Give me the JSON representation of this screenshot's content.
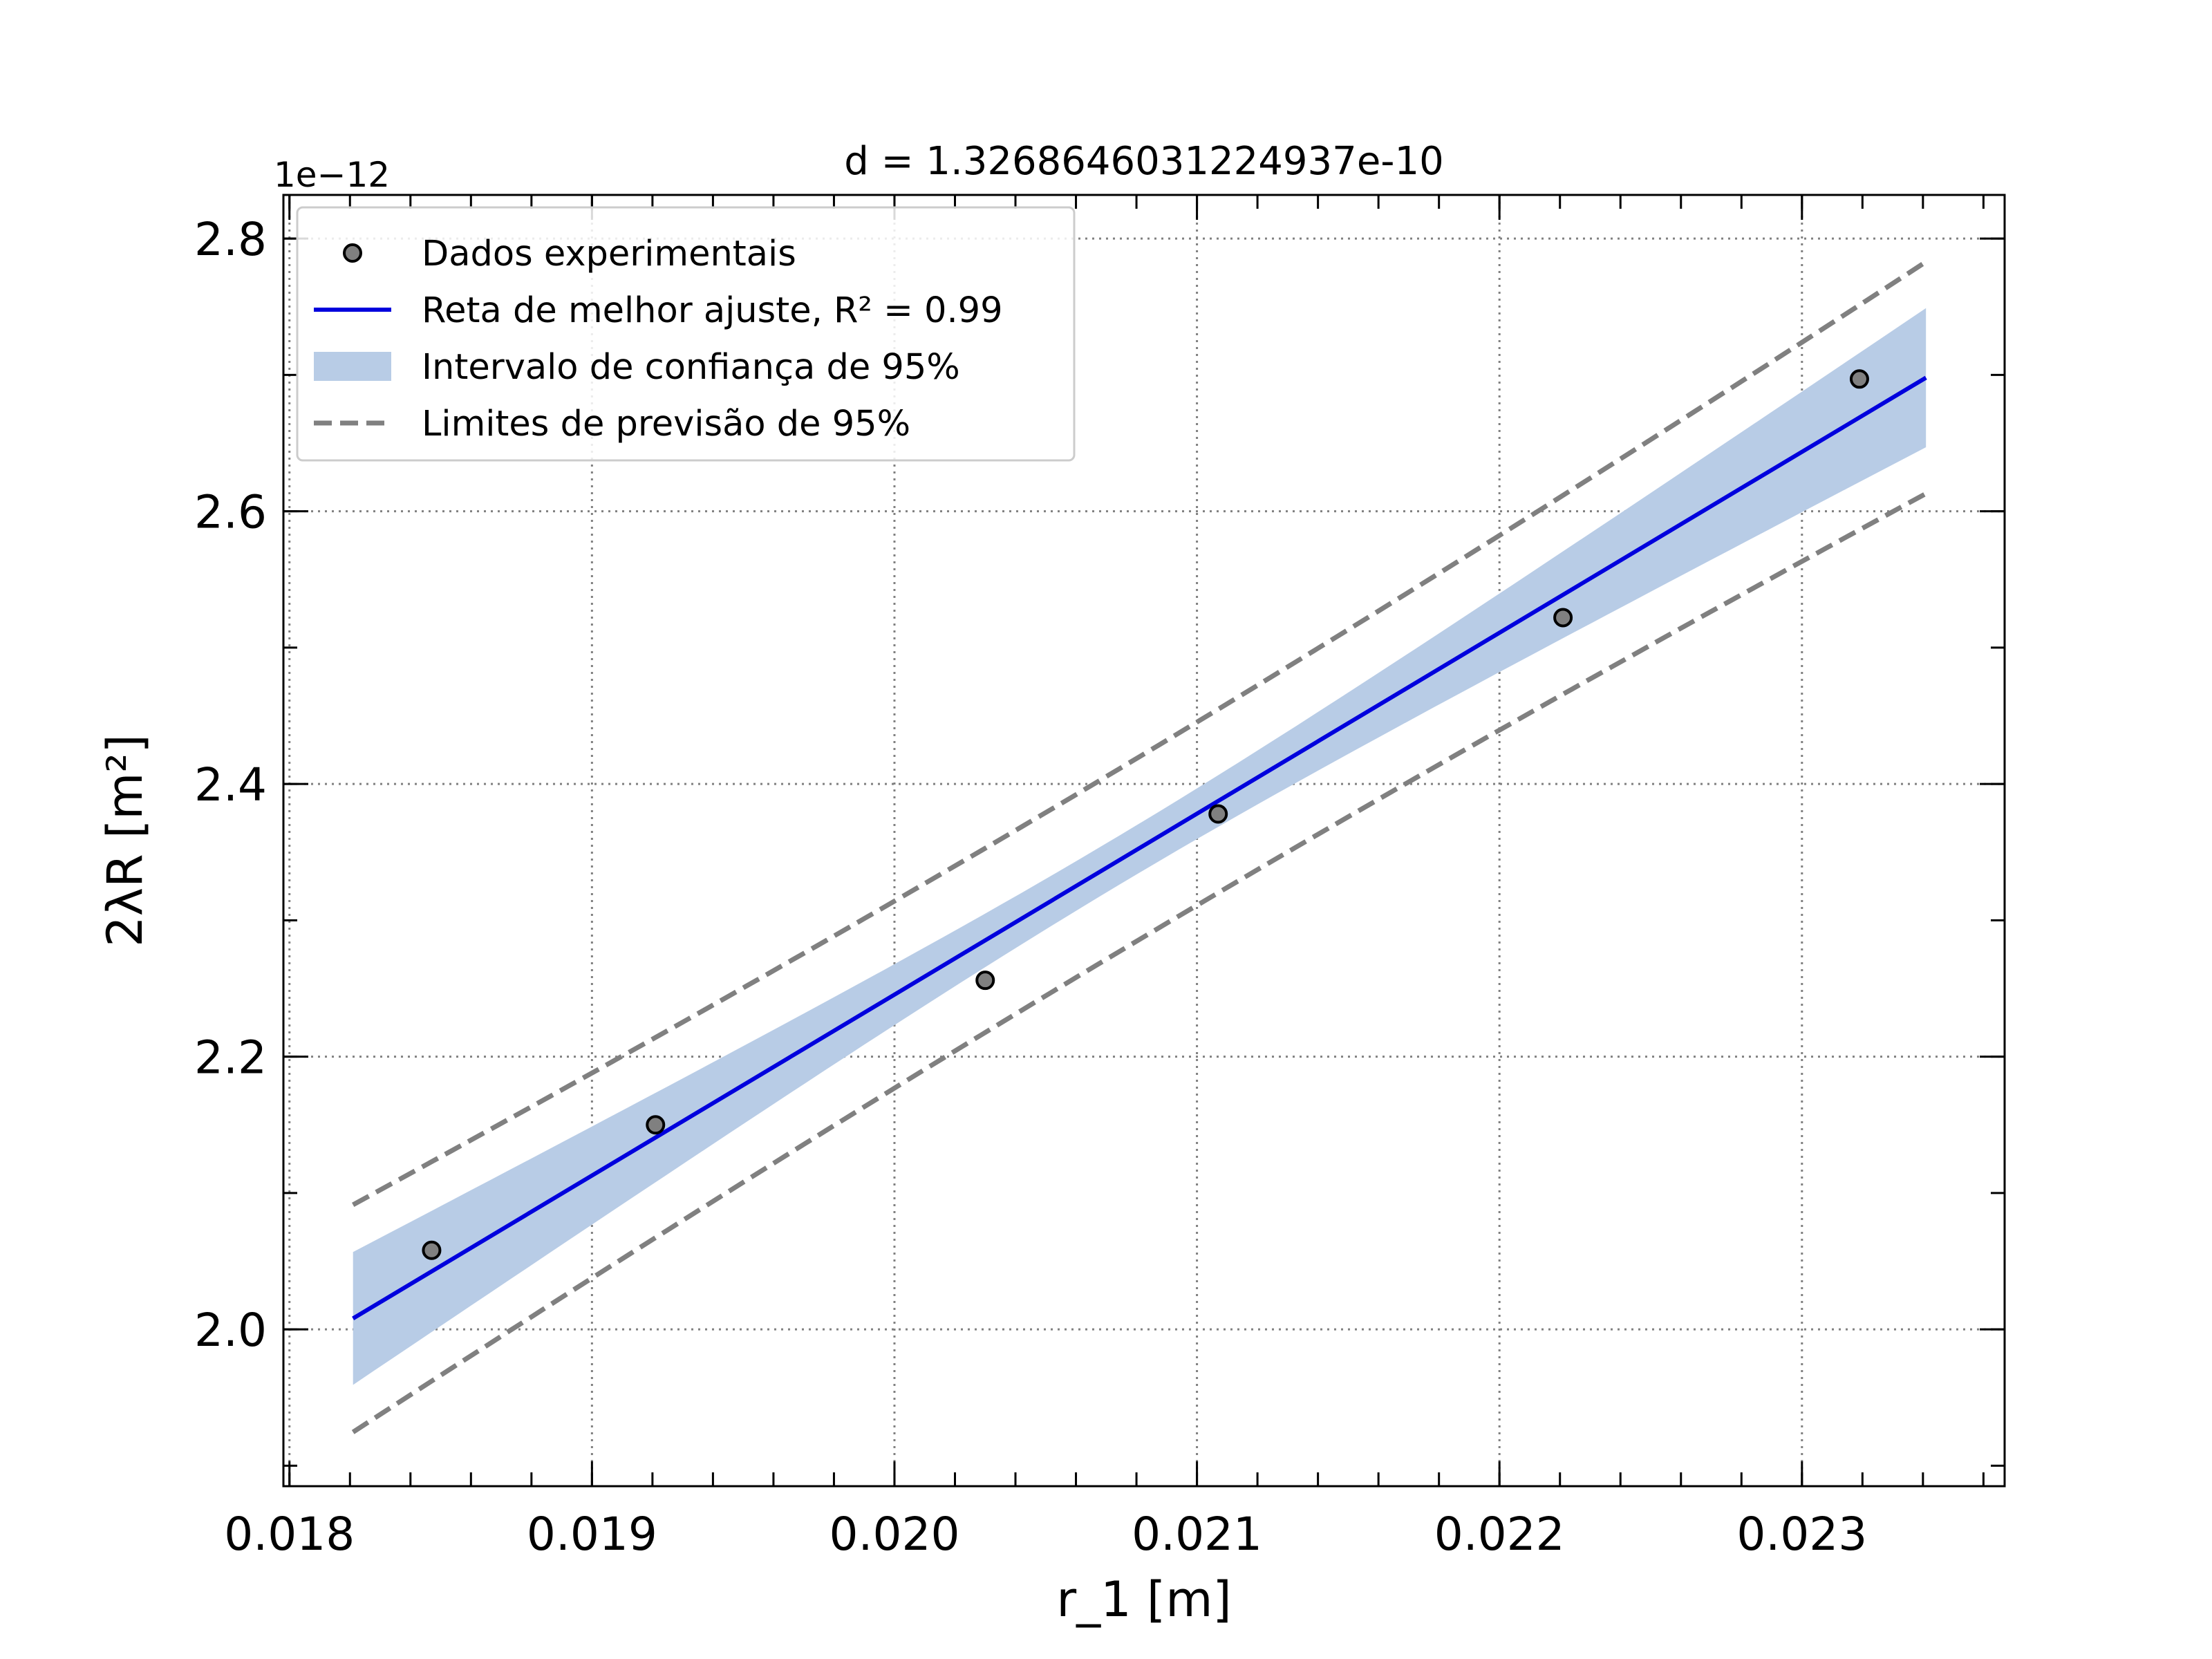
{
  "chart_data": {
    "type": "scatter",
    "title": "d = 1.3268646031224937e-10",
    "xlabel": "r_1 [m]",
    "ylabel": "2λR [m²]",
    "y_offset_text": "1e−12",
    "xlim": [
      0.01798,
      0.02367
    ],
    "ylim": [
      1.885,
      2.832
    ],
    "x_ticks": [
      "0.018",
      "0.019",
      "0.020",
      "0.021",
      "0.022",
      "0.023"
    ],
    "y_ticks": [
      "2.0",
      "2.2",
      "2.4",
      "2.6",
      "2.8"
    ],
    "grid": true,
    "legend_position": "top-left",
    "series": [
      {
        "name": "Dados experimentais",
        "kind": "points",
        "color": "#808080",
        "edge_color": "#000000",
        "points": [
          {
            "x": 0.01847,
            "y": 2.058
          },
          {
            "x": 0.01921,
            "y": 2.15
          },
          {
            "x": 0.0203,
            "y": 2.256
          },
          {
            "x": 0.02107,
            "y": 2.378
          },
          {
            "x": 0.02221,
            "y": 2.522
          },
          {
            "x": 0.02319,
            "y": 2.697
          }
        ]
      },
      {
        "name": "Reta de melhor ajuste, R² = 0.99",
        "kind": "line",
        "color": "#0000dd",
        "x_range": [
          0.01821,
          0.02341
        ],
        "slope": 1.3268646031224937e-10,
        "y_start": 2.008
      },
      {
        "name": "Intervalo de confiança de 95%",
        "kind": "band",
        "color": "#b8cce6",
        "half_width_min": 0.018,
        "half_width_edge": 0.051
      },
      {
        "name": "Limites de previsão de 95%",
        "kind": "dashed",
        "color": "#808080",
        "half_width_min": 0.067,
        "half_width_edge": 0.085
      }
    ]
  }
}
